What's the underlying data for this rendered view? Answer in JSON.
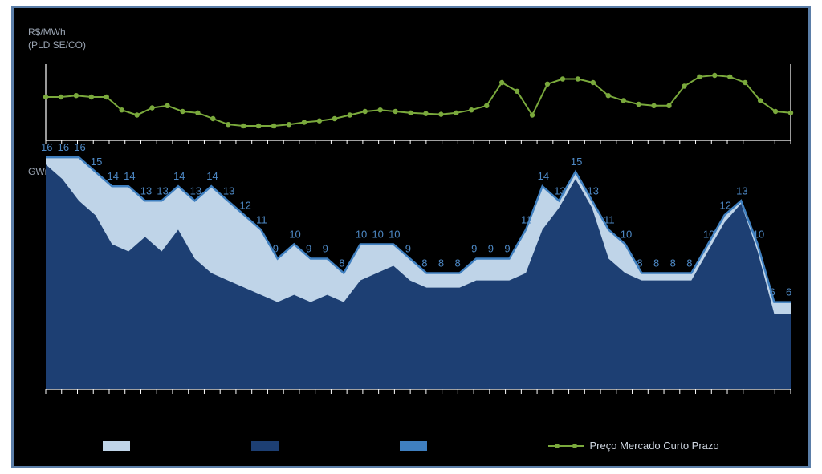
{
  "layout": {
    "frame_border_color": "#5b7ea8",
    "background_color": "#000000"
  },
  "top_chart": {
    "type": "line",
    "y_label_top": "R$/MWh",
    "y_label_bottom": "(PLD SE/CO)",
    "label_color": "#9aa4b2",
    "axis_color": "#ffffff",
    "line_color": "#7aa93c",
    "marker_color": "#7aa93c",
    "marker_size": 3.2,
    "line_width": 2,
    "ylim": [
      0,
      100
    ],
    "tick_count": 47,
    "values": [
      60,
      60,
      62,
      60,
      60,
      42,
      35,
      45,
      48,
      40,
      38,
      30,
      22,
      20,
      20,
      20,
      22,
      25,
      27,
      30,
      35,
      40,
      42,
      40,
      38,
      37,
      36,
      38,
      42,
      48,
      80,
      68,
      35,
      78,
      85,
      85,
      80,
      62,
      55,
      50,
      48,
      48,
      75,
      88,
      90,
      88,
      80,
      55,
      40,
      38
    ]
  },
  "bottom_chart": {
    "type": "area",
    "y_label": "GWm",
    "label_color": "#9aa4b2",
    "axis_color": "#ffffff",
    "ylim": [
      0,
      18
    ],
    "tick_count": 47,
    "series_back": {
      "name": "back-area",
      "fill_color": "#bfd4e8",
      "values": [
        16,
        16,
        16,
        15,
        14,
        14,
        13,
        13,
        14,
        13,
        14,
        13,
        12,
        11,
        9,
        10,
        9,
        9,
        8,
        10,
        10,
        10,
        9,
        8,
        8,
        8,
        9,
        9,
        9,
        11,
        14,
        13,
        15,
        13,
        11,
        10,
        8,
        8,
        8,
        8,
        10,
        12,
        13,
        10,
        6,
        6
      ]
    },
    "series_front": {
      "name": "front-area",
      "fill_color": "#1d3f73",
      "values": [
        15.5,
        14.5,
        13,
        12,
        10,
        9.5,
        10.5,
        9.5,
        11,
        9,
        8,
        7.5,
        7,
        6.5,
        6,
        6.5,
        6,
        6.5,
        6,
        7.5,
        8,
        8.5,
        7.5,
        7,
        7,
        7,
        7.5,
        7.5,
        7.5,
        8,
        11,
        12.5,
        14.5,
        12.5,
        9,
        8,
        7.5,
        7.5,
        7.5,
        7.5,
        9.5,
        11.5,
        12.8,
        9.5,
        5.2,
        5.2
      ]
    },
    "outline": {
      "color": "#3f7fbf",
      "width": 2.5
    },
    "data_labels": {
      "color": "#4d88c4",
      "fontsize": 13,
      "values": [
        16,
        16,
        16,
        15,
        14,
        14,
        13,
        13,
        14,
        13,
        14,
        13,
        12,
        11,
        9,
        10,
        9,
        9,
        8,
        10,
        10,
        10,
        9,
        8,
        8,
        8,
        9,
        9,
        9,
        11,
        14,
        13,
        15,
        13,
        11,
        10,
        8,
        8,
        8,
        8,
        10,
        12,
        13,
        10,
        6,
        6
      ]
    }
  },
  "legend": {
    "items": [
      {
        "type": "swatch",
        "color": "#bfd4e8",
        "label": ""
      },
      {
        "type": "swatch",
        "color": "#1d3f73",
        "label": ""
      },
      {
        "type": "swatch",
        "color": "#3f7fbf",
        "label": ""
      },
      {
        "type": "line",
        "color": "#7aa93c",
        "label": "Preço Mercado Curto Prazo"
      }
    ]
  }
}
